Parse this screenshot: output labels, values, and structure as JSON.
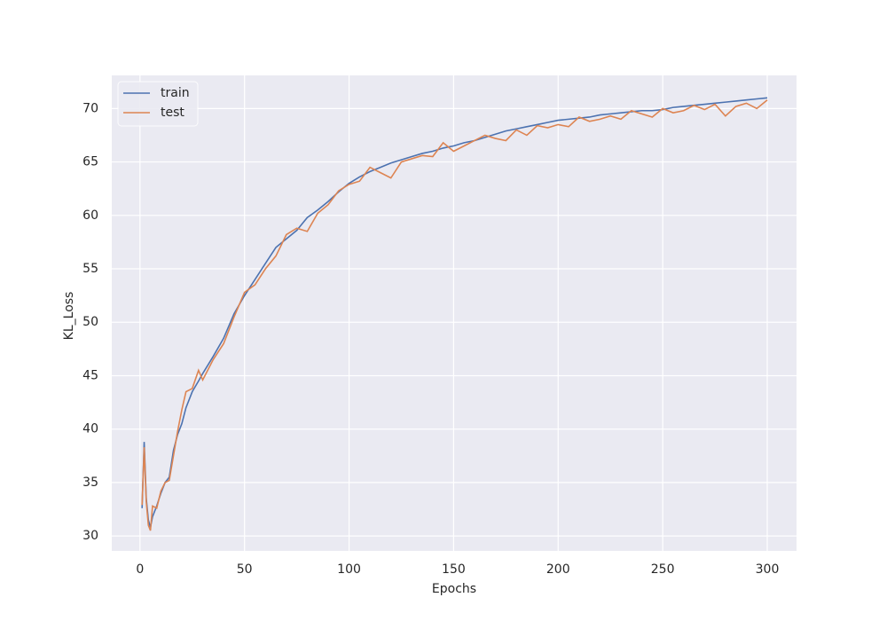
{
  "chart_data": {
    "type": "line",
    "xlabel": "Epochs",
    "ylabel": "KL_Loss",
    "x": [
      1,
      2,
      3,
      4,
      5,
      6,
      8,
      10,
      12,
      14,
      16,
      18,
      20,
      22,
      25,
      28,
      30,
      35,
      40,
      45,
      50,
      55,
      60,
      65,
      70,
      75,
      80,
      85,
      90,
      95,
      100,
      105,
      110,
      115,
      120,
      125,
      130,
      135,
      140,
      145,
      150,
      155,
      160,
      165,
      170,
      175,
      180,
      185,
      190,
      195,
      200,
      205,
      210,
      215,
      220,
      225,
      230,
      235,
      240,
      245,
      250,
      255,
      260,
      265,
      270,
      275,
      280,
      285,
      290,
      295,
      300
    ],
    "series": [
      {
        "name": "train",
        "color": "#4c72b0",
        "values": [
          32.6,
          38.8,
          33.5,
          31.5,
          30.8,
          31.8,
          32.8,
          34.0,
          35.0,
          35.5,
          38.0,
          39.5,
          40.5,
          42.0,
          43.5,
          44.5,
          45.2,
          46.8,
          48.5,
          50.8,
          52.5,
          54.0,
          55.5,
          57.0,
          57.8,
          58.6,
          59.8,
          60.5,
          61.3,
          62.2,
          63.0,
          63.6,
          64.1,
          64.5,
          64.9,
          65.2,
          65.5,
          65.8,
          66.0,
          66.3,
          66.5,
          66.8,
          67.0,
          67.3,
          67.6,
          67.9,
          68.1,
          68.3,
          68.5,
          68.7,
          68.9,
          69.0,
          69.1,
          69.2,
          69.4,
          69.5,
          69.6,
          69.7,
          69.8,
          69.8,
          69.9,
          70.1,
          70.2,
          70.3,
          70.4,
          70.5,
          70.6,
          70.7,
          70.8,
          70.9,
          71.0
        ]
      },
      {
        "name": "test",
        "color": "#dd8452",
        "values": [
          32.9,
          38.3,
          33.2,
          31.0,
          30.5,
          32.8,
          32.6,
          34.2,
          35.0,
          35.2,
          37.5,
          39.8,
          41.8,
          43.5,
          43.8,
          45.5,
          44.6,
          46.5,
          48.0,
          50.5,
          52.8,
          53.5,
          55.0,
          56.2,
          58.2,
          58.8,
          58.5,
          60.2,
          61.0,
          62.3,
          62.9,
          63.2,
          64.5,
          64.0,
          63.5,
          65.0,
          65.3,
          65.6,
          65.5,
          66.8,
          66.0,
          66.5,
          67.0,
          67.5,
          67.2,
          67.0,
          68.0,
          67.5,
          68.4,
          68.2,
          68.5,
          68.3,
          69.2,
          68.8,
          69.0,
          69.3,
          69.0,
          69.8,
          69.5,
          69.2,
          70.0,
          69.6,
          69.8,
          70.3,
          69.9,
          70.4,
          69.3,
          70.2,
          70.5,
          70.0,
          70.8
        ]
      }
    ],
    "xlim": [
      -13.5,
      314
    ],
    "ylim": [
      28.6,
      73.1
    ],
    "xticks": [
      0,
      50,
      100,
      150,
      200,
      250,
      300
    ],
    "yticks": [
      30,
      35,
      40,
      45,
      50,
      55,
      60,
      65,
      70
    ],
    "grid": true,
    "legend": "upper-left"
  }
}
